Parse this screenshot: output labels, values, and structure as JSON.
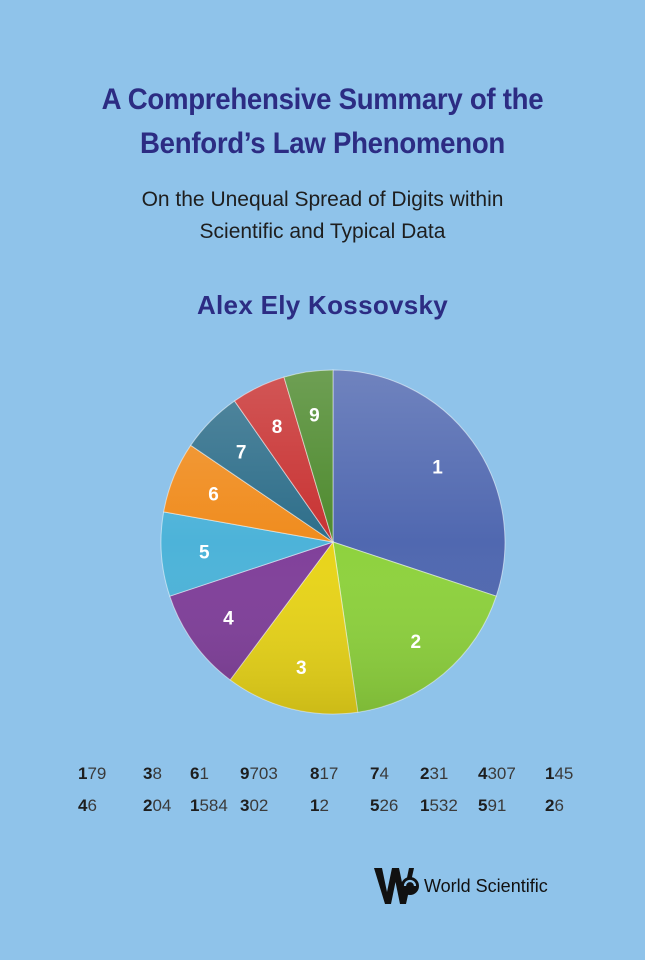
{
  "title": {
    "line1": "A Comprehensive Summary of the",
    "line2": "Benford’s Law Phenomenon"
  },
  "subtitle": {
    "line1": "On the Unequal Spread of Digits within",
    "line2": "Scientific and Typical Data"
  },
  "author": "Alex Ely Kossovsky",
  "chart_data": {
    "type": "pie",
    "slices": [
      {
        "label": "1",
        "value": 30.1,
        "color": "#5068b0"
      },
      {
        "label": "2",
        "value": 17.6,
        "color": "#8ed23e"
      },
      {
        "label": "3",
        "value": 12.5,
        "color": "#e8d41a"
      },
      {
        "label": "4",
        "value": 9.7,
        "color": "#80409a"
      },
      {
        "label": "5",
        "value": 7.9,
        "color": "#4db3d9"
      },
      {
        "label": "6",
        "value": 6.7,
        "color": "#f08c1e"
      },
      {
        "label": "7",
        "value": 5.8,
        "color": "#2e6e8a"
      },
      {
        "label": "8",
        "value": 5.1,
        "color": "#c83232"
      },
      {
        "label": "9",
        "value": 4.6,
        "color": "#4e8a2e"
      }
    ]
  },
  "number_rows": [
    [
      [
        "1",
        "79"
      ],
      [
        "3",
        "8"
      ],
      [
        "6",
        "1"
      ],
      [
        "9",
        "703"
      ],
      [
        "8",
        "17"
      ],
      [
        "7",
        "4"
      ],
      [
        "2",
        "31"
      ],
      [
        "4",
        "307"
      ],
      [
        "1",
        "45"
      ]
    ],
    [
      [
        "4",
        "6"
      ],
      [
        "2",
        "04"
      ],
      [
        "1",
        "584"
      ],
      [
        "3",
        "02"
      ],
      [
        "1",
        "2"
      ],
      [
        "5",
        "26"
      ],
      [
        "1",
        "532"
      ],
      [
        "5",
        "91"
      ],
      [
        "2",
        "6"
      ]
    ]
  ],
  "publisher": {
    "name": "World Scientific",
    "logo_icon": "world-scientific-logo-icon"
  }
}
